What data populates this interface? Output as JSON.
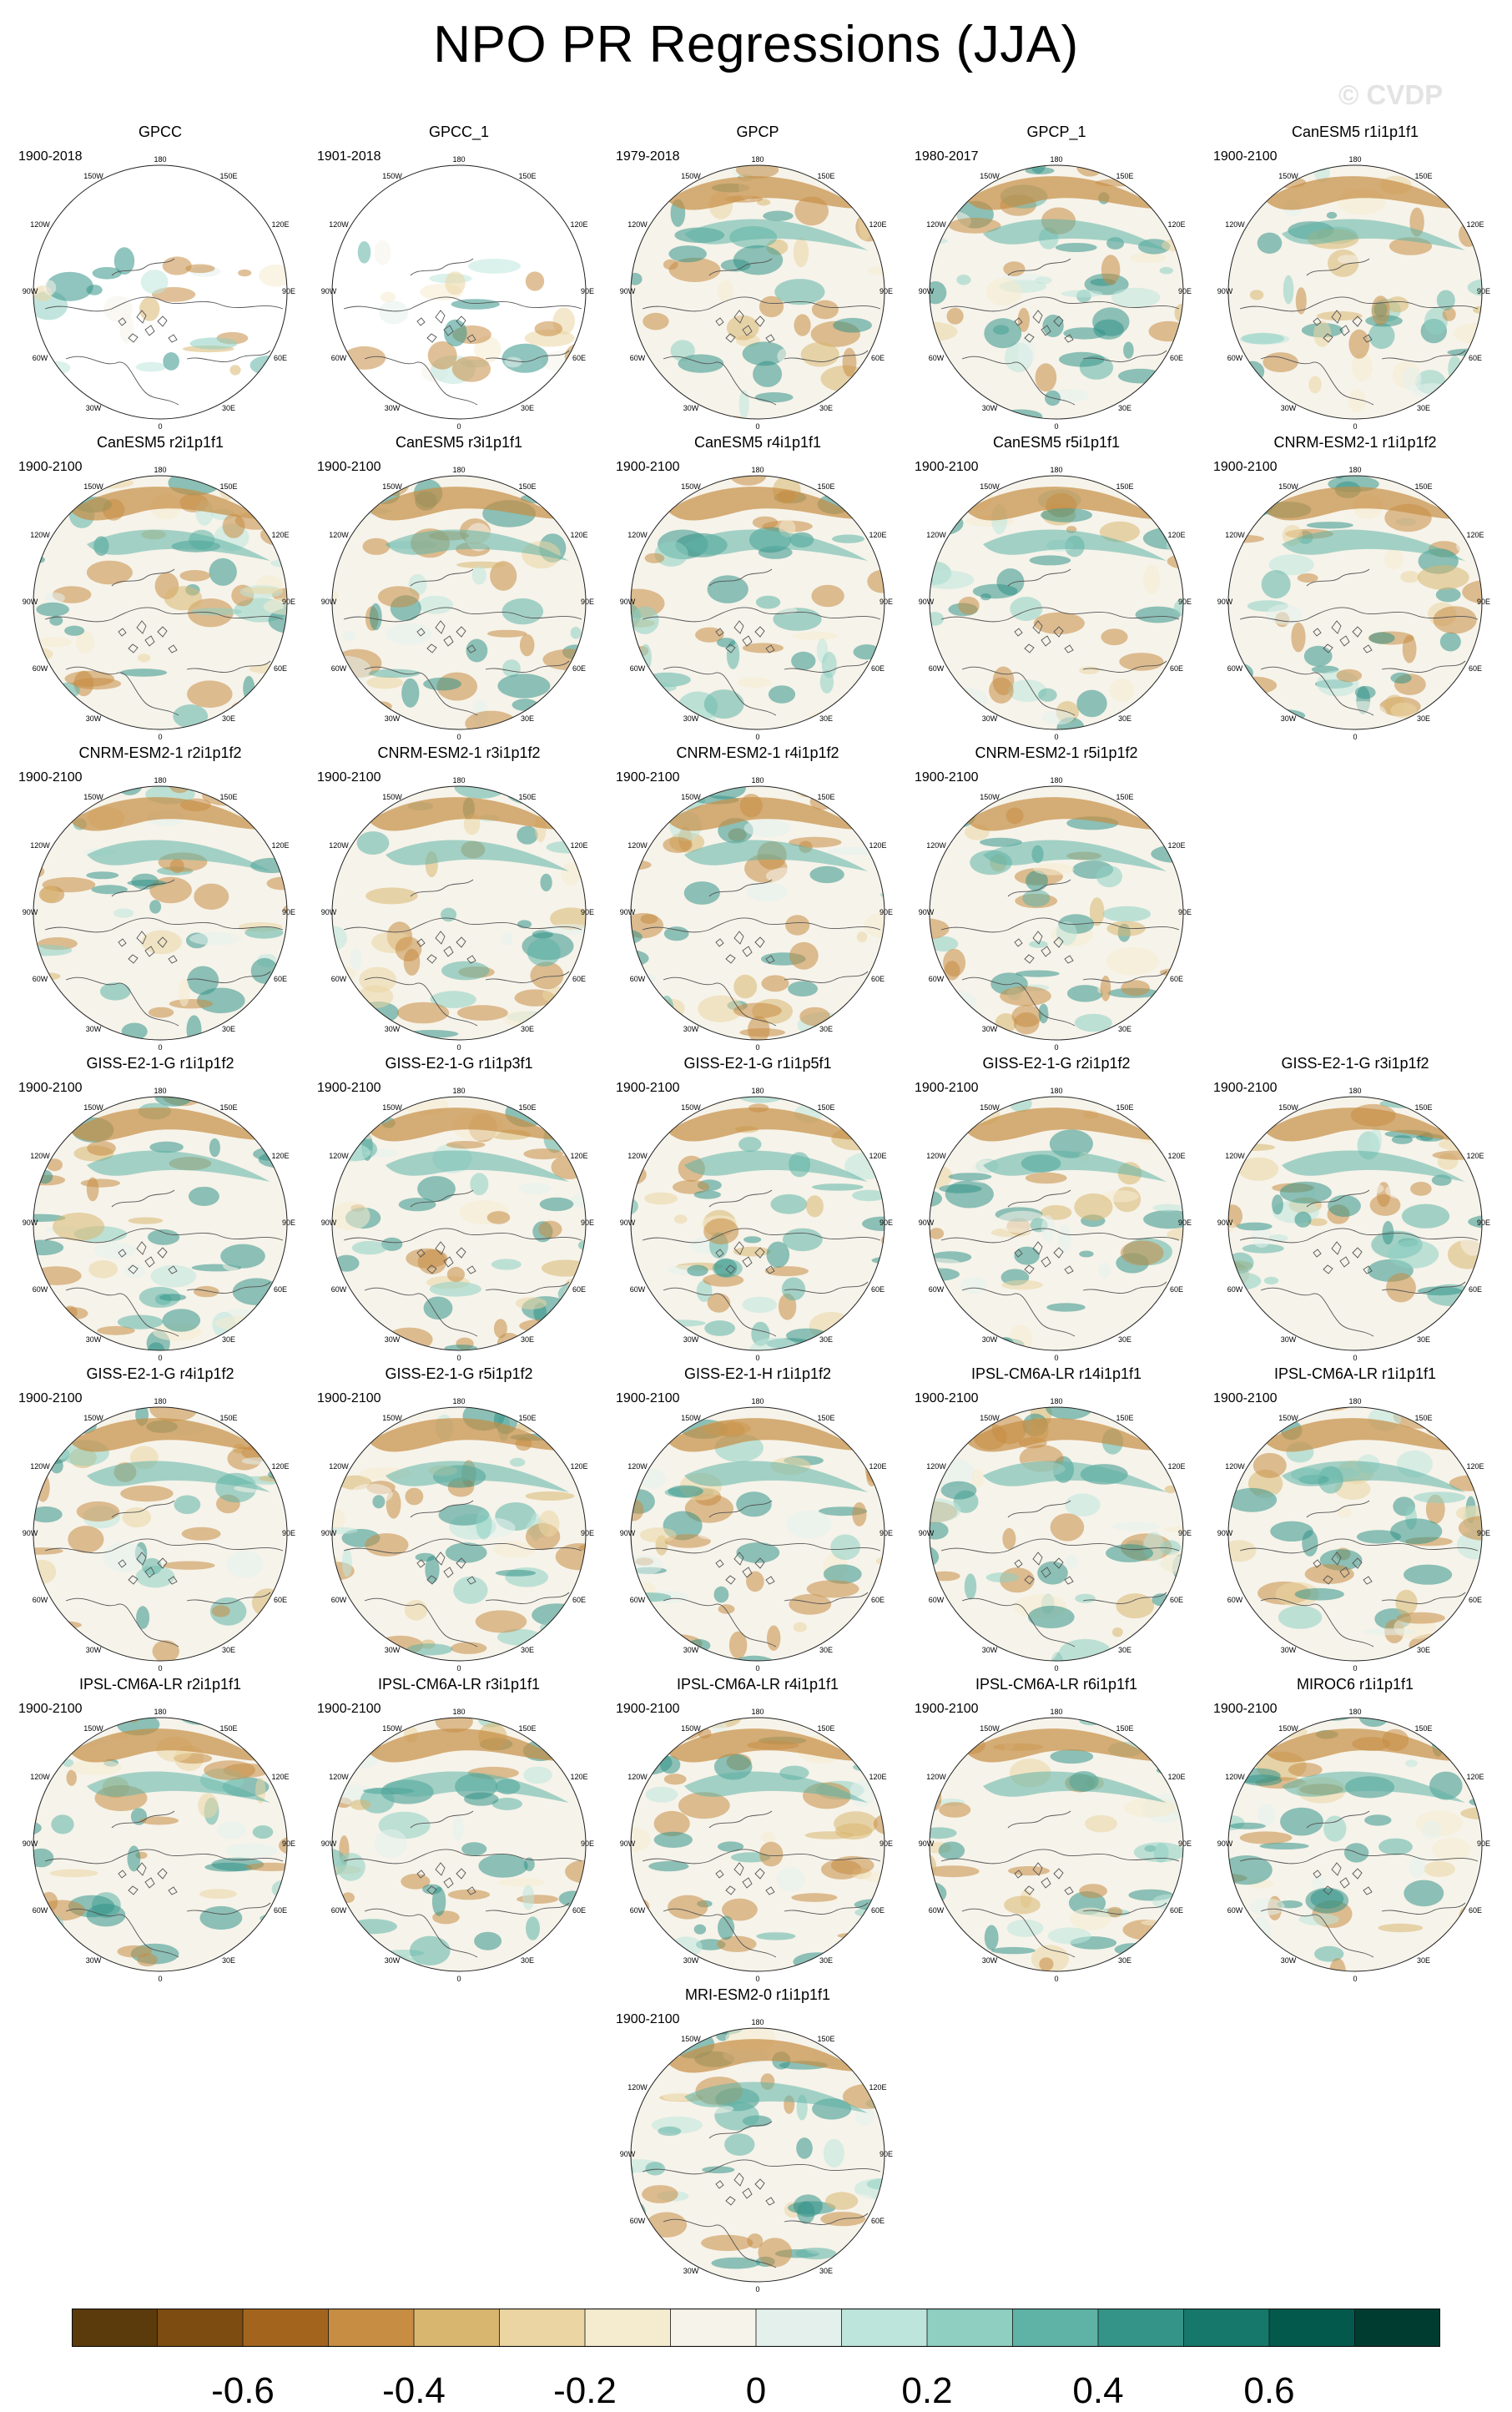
{
  "title": "NPO PR Regressions (JJA)",
  "watermark": "© CVDP",
  "lon_labels": [
    "180",
    "150W",
    "150E",
    "120W",
    "120E",
    "90W",
    "90E",
    "60W",
    "60E",
    "30W",
    "30E",
    "0"
  ],
  "colorbar": {
    "ticks": [
      "-0.6",
      "-0.4",
      "-0.2",
      "0",
      "0.2",
      "0.4",
      "0.6"
    ],
    "colors": [
      "#5b3a0c",
      "#7d4c10",
      "#a3651e",
      "#c68d43",
      "#d9b670",
      "#ebd5a2",
      "#f5ebcf",
      "#f6f3ea",
      "#e3f0ec",
      "#bde5dc",
      "#8ecfc2",
      "#5fb3a6",
      "#359488",
      "#16786b",
      "#035a4c",
      "#003d30"
    ]
  },
  "panels": [
    {
      "title": "GPCC",
      "period": "1900-2018"
    },
    {
      "title": "GPCC_1",
      "period": "1901-2018"
    },
    {
      "title": "GPCP",
      "period": "1979-2018"
    },
    {
      "title": "GPCP_1",
      "period": "1980-2017"
    },
    {
      "title": "CanESM5 r1i1p1f1",
      "period": "1900-2100"
    },
    {
      "title": "CanESM5 r2i1p1f1",
      "period": "1900-2100"
    },
    {
      "title": "CanESM5 r3i1p1f1",
      "period": "1900-2100"
    },
    {
      "title": "CanESM5 r4i1p1f1",
      "period": "1900-2100"
    },
    {
      "title": "CanESM5 r5i1p1f1",
      "period": "1900-2100"
    },
    {
      "title": "CNRM-ESM2-1 r1i1p1f2",
      "period": "1900-2100"
    },
    {
      "title": "CNRM-ESM2-1 r2i1p1f2",
      "period": "1900-2100"
    },
    {
      "title": "CNRM-ESM2-1 r3i1p1f2",
      "period": "1900-2100"
    },
    {
      "title": "CNRM-ESM2-1 r4i1p1f2",
      "period": "1900-2100"
    },
    {
      "title": "CNRM-ESM2-1 r5i1p1f2",
      "period": "1900-2100"
    },
    {
      "title": "GISS-E2-1-G r1i1p1f2",
      "period": "1900-2100"
    },
    {
      "title": "GISS-E2-1-G r1i1p3f1",
      "period": "1900-2100"
    },
    {
      "title": "GISS-E2-1-G r1i1p5f1",
      "period": "1900-2100"
    },
    {
      "title": "GISS-E2-1-G r2i1p1f2",
      "period": "1900-2100"
    },
    {
      "title": "GISS-E2-1-G r3i1p1f2",
      "period": "1900-2100"
    },
    {
      "title": "GISS-E2-1-G r4i1p1f2",
      "period": "1900-2100"
    },
    {
      "title": "GISS-E2-1-G r5i1p1f2",
      "period": "1900-2100"
    },
    {
      "title": "GISS-E2-1-H r1i1p1f2",
      "period": "1900-2100"
    },
    {
      "title": "IPSL-CM6A-LR r14i1p1f1",
      "period": "1900-2100"
    },
    {
      "title": "IPSL-CM6A-LR r1i1p1f1",
      "period": "1900-2100"
    },
    {
      "title": "IPSL-CM6A-LR r2i1p1f1",
      "period": "1900-2100"
    },
    {
      "title": "IPSL-CM6A-LR r3i1p1f1",
      "period": "1900-2100"
    },
    {
      "title": "IPSL-CM6A-LR r4i1p1f1",
      "period": "1900-2100"
    },
    {
      "title": "IPSL-CM6A-LR r6i1p1f1",
      "period": "1900-2100"
    },
    {
      "title": "MIROC6 r1i1p1f1",
      "period": "1900-2100"
    },
    {
      "title": "MRI-ESM2-0 r1i1p1f1",
      "period": "1900-2100"
    }
  ]
}
